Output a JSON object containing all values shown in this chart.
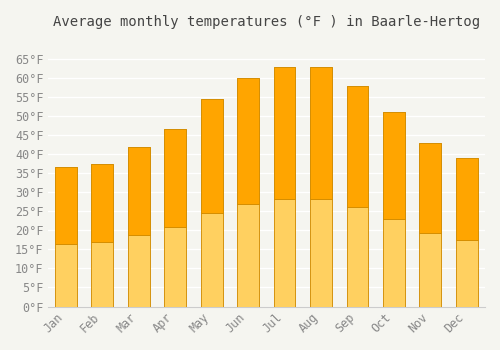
{
  "title": "Average monthly temperatures (°F ) in Baarle-Hertog",
  "months": [
    "Jan",
    "Feb",
    "Mar",
    "Apr",
    "May",
    "Jun",
    "Jul",
    "Aug",
    "Sep",
    "Oct",
    "Nov",
    "Dec"
  ],
  "values": [
    36.5,
    37.5,
    42.0,
    46.5,
    54.5,
    60.0,
    63.0,
    63.0,
    58.0,
    51.0,
    43.0,
    39.0
  ],
  "bar_color_top": "#FFA500",
  "bar_color_bottom": "#FFD060",
  "ylim": [
    0,
    70
  ],
  "yticks": [
    0,
    5,
    10,
    15,
    20,
    25,
    30,
    35,
    40,
    45,
    50,
    55,
    60,
    65
  ],
  "ytick_labels": [
    "0°F",
    "5°F",
    "10°F",
    "15°F",
    "20°F",
    "25°F",
    "30°F",
    "35°F",
    "40°F",
    "45°F",
    "50°F",
    "55°F",
    "60°F",
    "65°F"
  ],
  "background_color": "#f5f5f0",
  "grid_color": "#ffffff",
  "bar_edge_color": "#CC8800",
  "title_fontsize": 10,
  "tick_fontsize": 8.5,
  "font_color": "#888888"
}
